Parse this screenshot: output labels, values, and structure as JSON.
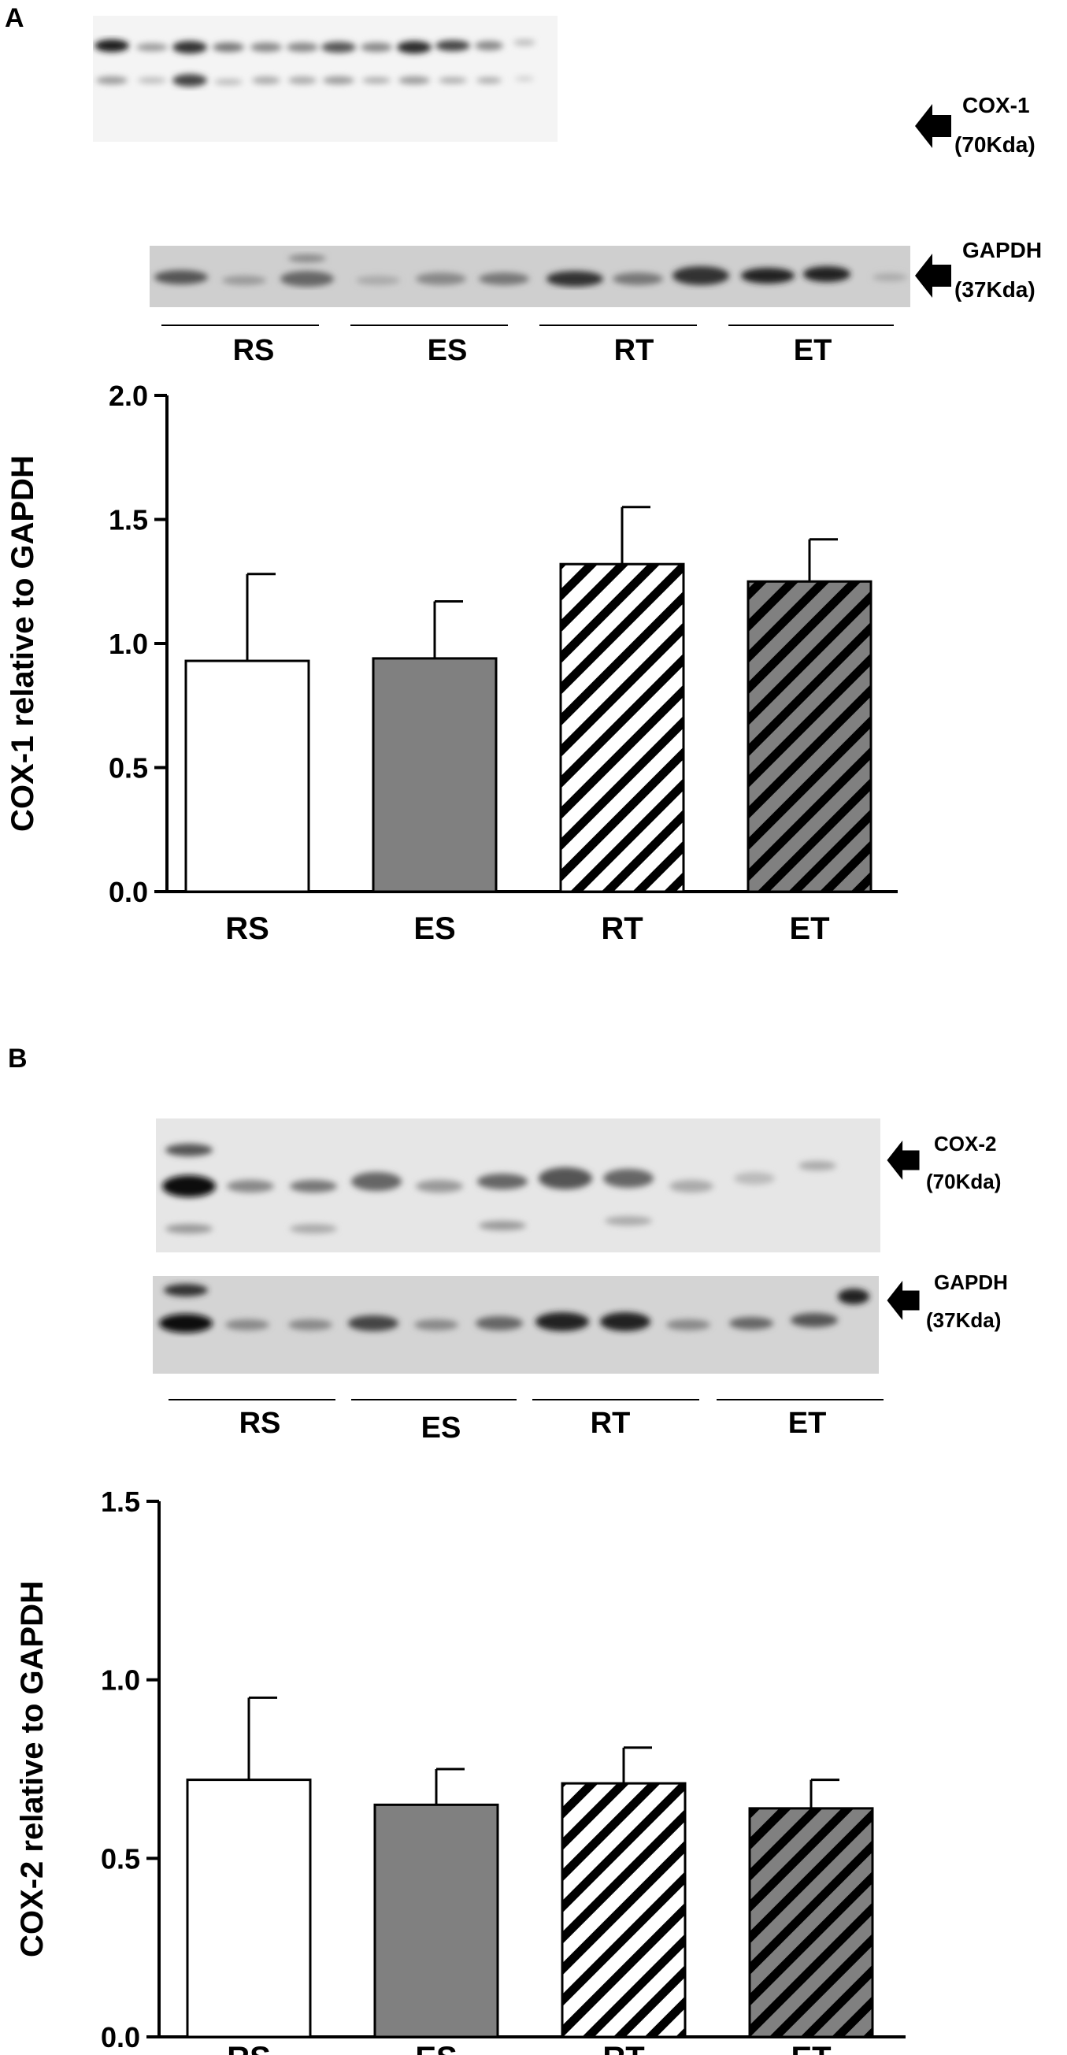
{
  "panels": [
    {
      "letter": "A",
      "blot": {
        "target_name": "COX-1",
        "target_weight": "(70Kda)",
        "control_name": "GAPDH",
        "control_weight": "(37Kda)",
        "groups": [
          "RS",
          "ES",
          "RT",
          "ET"
        ]
      }
    },
    {
      "letter": "B",
      "blot": {
        "target_name": "COX-2",
        "target_weight": "(70Kda)",
        "control_name": "GAPDH",
        "control_weight": "(37Kda)",
        "groups": [
          "RS",
          "ES",
          "RT",
          "ET"
        ]
      }
    }
  ],
  "chart_data": [
    {
      "type": "bar",
      "categories": [
        "RS",
        "ES",
        "RT",
        "ET"
      ],
      "values": [
        0.93,
        0.94,
        1.32,
        1.25
      ],
      "errors": [
        0.35,
        0.23,
        0.23,
        0.17
      ],
      "ylabel": "COX-1 relative to GAPDH",
      "xlabel": "",
      "ylim": [
        0,
        2.0
      ],
      "yticks": [
        "0.0",
        "0.5",
        "1.0",
        "1.5",
        "2.0"
      ],
      "bar_styles": [
        "white",
        "gray",
        "white-hatched",
        "gray-hatched"
      ],
      "colors": {
        "white": "#ffffff",
        "gray": "#808080",
        "edge": "#000000"
      }
    },
    {
      "type": "bar",
      "categories": [
        "RS",
        "ES",
        "RT",
        "ET"
      ],
      "values": [
        0.72,
        0.65,
        0.71,
        0.64
      ],
      "errors": [
        0.23,
        0.1,
        0.1,
        0.08
      ],
      "ylabel": "COX-2 relative to GAPDH",
      "xlabel": "",
      "ylim": [
        0,
        1.5
      ],
      "yticks": [
        "0.0",
        "0.5",
        "1.0",
        "1.5"
      ],
      "bar_styles": [
        "white",
        "gray",
        "white-hatched",
        "gray-hatched"
      ],
      "colors": {
        "white": "#ffffff",
        "gray": "#808080",
        "edge": "#000000"
      }
    }
  ]
}
